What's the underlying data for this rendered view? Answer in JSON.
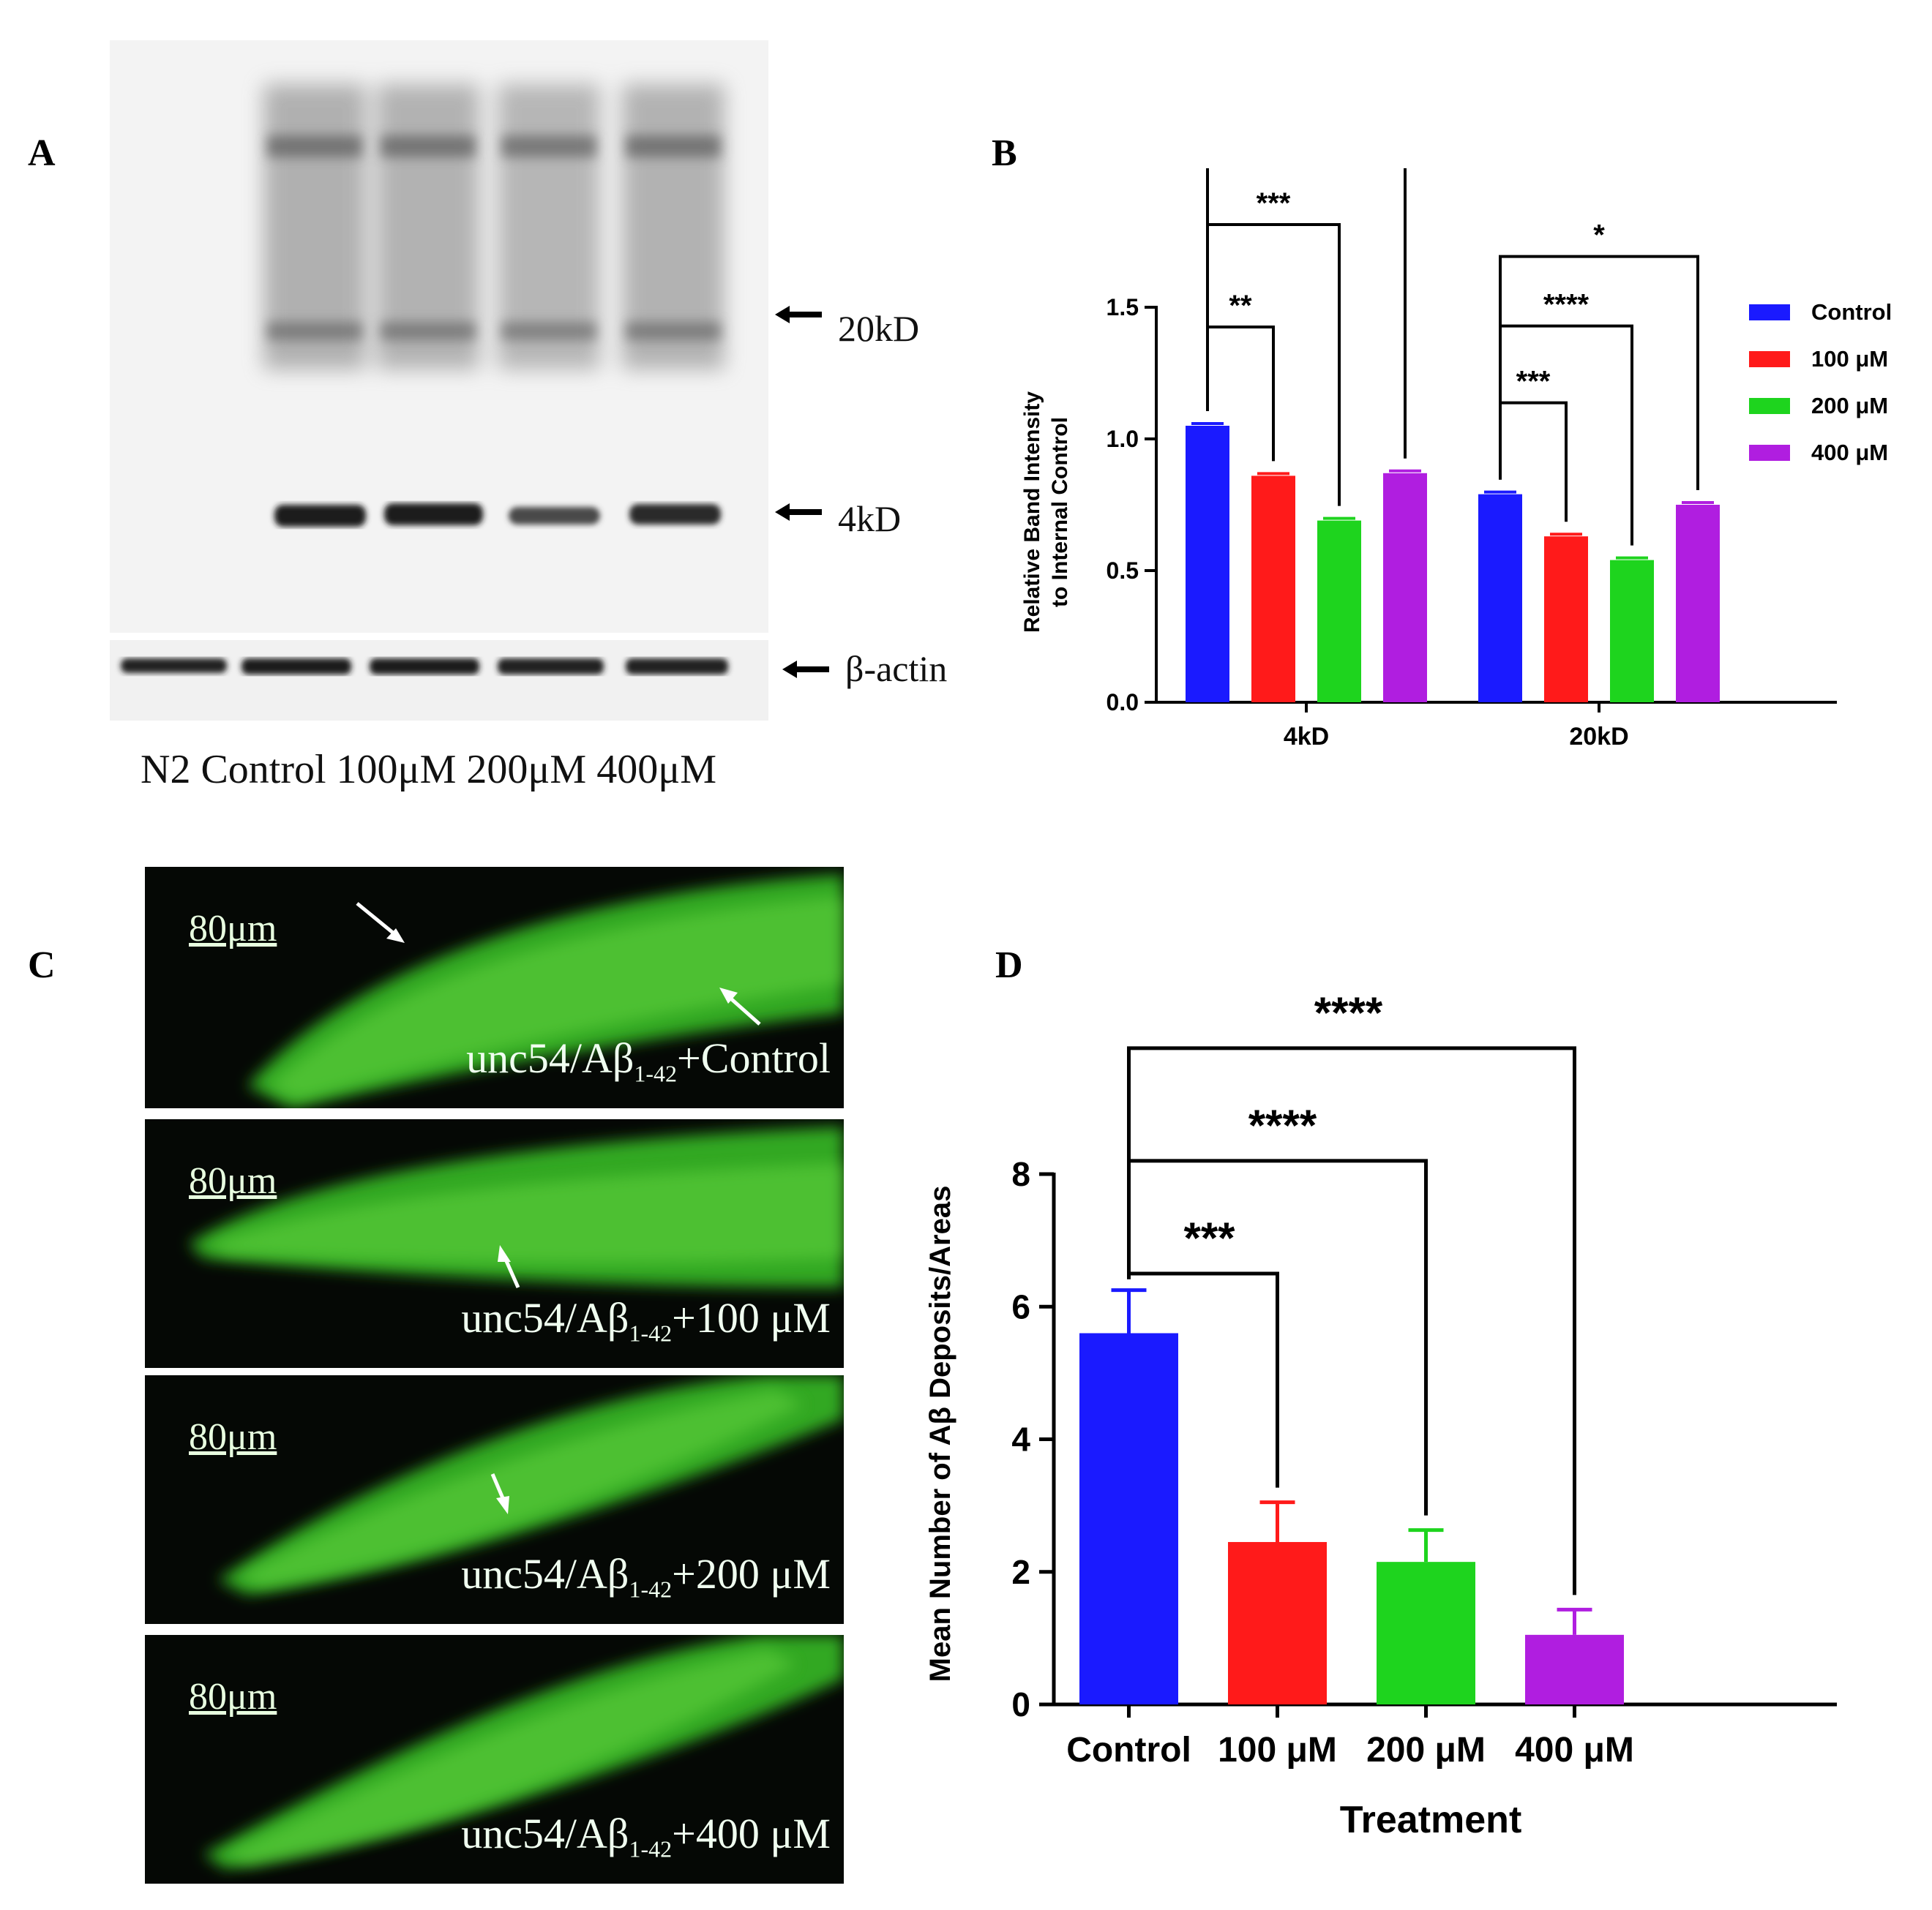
{
  "panel_letters": {
    "a": "A",
    "b": "B",
    "c": "C",
    "d": "D"
  },
  "panel_a": {
    "lane_labels": "N2 Control 100μM 200μM 400μM",
    "marker_20": "20kD",
    "marker_4": "4kD",
    "marker_actin": "β-actin"
  },
  "panel_c": {
    "scale_label": "80μm",
    "prefix": "unc54/Aβ",
    "subscript": "1-42",
    "images": [
      {
        "suffix": "+Control"
      },
      {
        "suffix": "+100 μM"
      },
      {
        "suffix": "+200 μM"
      },
      {
        "suffix": "+400 μM"
      }
    ]
  },
  "colors": {
    "control": "#1a1aff",
    "c100": "#ff1a1a",
    "c200": "#1ed41e",
    "c400": "#b01ee0"
  },
  "chart_data": [
    {
      "type": "bar",
      "panel": "B",
      "ylabel_line1": "Relative Band Intensity",
      "ylabel_line2": "to Internal Control",
      "categories": [
        "4kD",
        "20kD"
      ],
      "ylim": [
        0,
        1.5
      ],
      "yticks": [
        "0.0",
        "0.5",
        "1.0",
        "1.5"
      ],
      "legend_position": "right",
      "series": [
        {
          "name": "Control",
          "values": [
            1.05,
            0.79
          ]
        },
        {
          "name": "100 μM",
          "values": [
            0.86,
            0.63
          ]
        },
        {
          "name": "200 μM",
          "values": [
            0.69,
            0.54
          ]
        },
        {
          "name": "400 μM",
          "values": [
            0.87,
            0.75
          ]
        }
      ],
      "significance": {
        "4kD": [
          "**",
          "***",
          "**"
        ],
        "20kD": [
          "***",
          "****",
          "*"
        ]
      }
    },
    {
      "type": "bar",
      "panel": "D",
      "ylabel": "Mean Number of Aβ Deposits/Areas",
      "xlabel": "Treatment",
      "categories": [
        "Control",
        "100 μM",
        "200 μM",
        "400 μM"
      ],
      "values": [
        5.6,
        2.45,
        2.15,
        1.05
      ],
      "errors": [
        0.65,
        0.6,
        0.48,
        0.38
      ],
      "ylim": [
        0,
        8
      ],
      "yticks": [
        "0",
        "2",
        "4",
        "6",
        "8"
      ],
      "significance": [
        "***",
        "****",
        "****"
      ]
    }
  ]
}
